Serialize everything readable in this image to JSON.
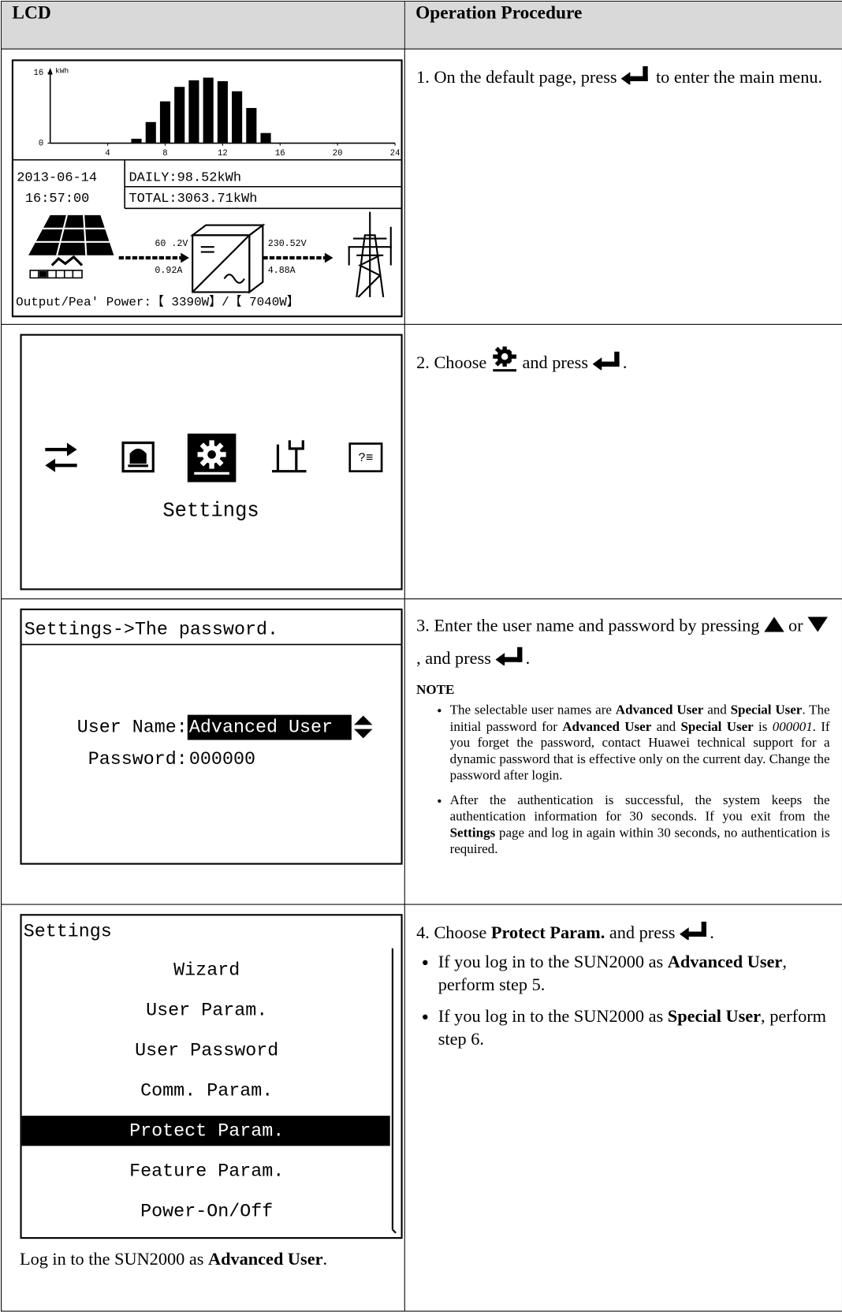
{
  "header": [
    "LCD",
    "Operation Procedure"
  ],
  "rows": [
    {
      "lcd": {
        "chart": {
          "unit": "kWh",
          "ylim": [
            0,
            16
          ],
          "yticks": [
            0,
            16
          ],
          "xlim": [
            0,
            24
          ],
          "xticks": [
            4,
            8,
            12,
            16,
            20,
            24
          ],
          "bars": {
            "x": [
              6,
              7,
              8,
              9,
              10,
              11,
              12,
              13,
              14,
              15
            ],
            "values": [
              1,
              4.8,
              9.5,
              12.8,
              14.3,
              14.9,
              14.1,
              11.8,
              8,
              2.3
            ]
          }
        },
        "date": "2013-06-14",
        "time": "16:57:00",
        "daily": "DAILY:98.52kWh",
        "total": "TOTAL:3063.71kWh",
        "pv_voltage": "60 .2V",
        "pv_current": "0.92A",
        "grid_voltage": "230.52V",
        "grid_current": "4.88A",
        "power": "Output/Pea' Power:【 3390W】/【 7040W】"
      },
      "step": [
        "1. On the default page, press",
        "to enter the main menu."
      ]
    },
    {
      "lcd": {
        "label": "Settings"
      },
      "step": [
        "2. Choose",
        "and press",
        "."
      ]
    },
    {
      "lcd": {
        "title": "Settings->The password.",
        "user_label": "User Name:",
        "user_value": "Advanced User",
        "password_label": "Password:",
        "password_value": "000000"
      },
      "step": [
        "3. Enter the user name and password by pressing",
        "or",
        ", and press",
        "."
      ],
      "note": "NOTE",
      "bullets": [
        [
          "The selectable user names are ",
          "Advanced User",
          " and ",
          "Special User",
          ". The initial password for ",
          "Advanced User",
          " and ",
          "Special User",
          " is ",
          "000001",
          ". If you forget the password, contact Huawei technical support for a dynamic password that is effective only on the current day. Change the password after login."
        ],
        [
          "After the authentication is successful, the system keeps the authentication information for 30 seconds. If you exit from the ",
          "Settings",
          " page and log in again within 30 seconds, no authentication is required."
        ]
      ]
    },
    {
      "lcd": {
        "title": "Settings",
        "items": [
          "Wizard",
          "User Param.",
          "User Password",
          "Comm. Param.",
          "Protect Param.",
          "Feature Param.",
          "Power-On/Off"
        ],
        "selected": 4
      },
      "caption": [
        "Log in to the SUN2000 as ",
        "Advanced User",
        "."
      ],
      "step": [
        "4. Choose ",
        "Protect Param.",
        " and press",
        "."
      ],
      "bullets": [
        [
          "If you log in to the SUN2000 as ",
          "Advanced User",
          ", perform step 5."
        ],
        [
          "If you log in to the SUN2000 as ",
          "Special User",
          ", perform step 6."
        ]
      ]
    }
  ]
}
